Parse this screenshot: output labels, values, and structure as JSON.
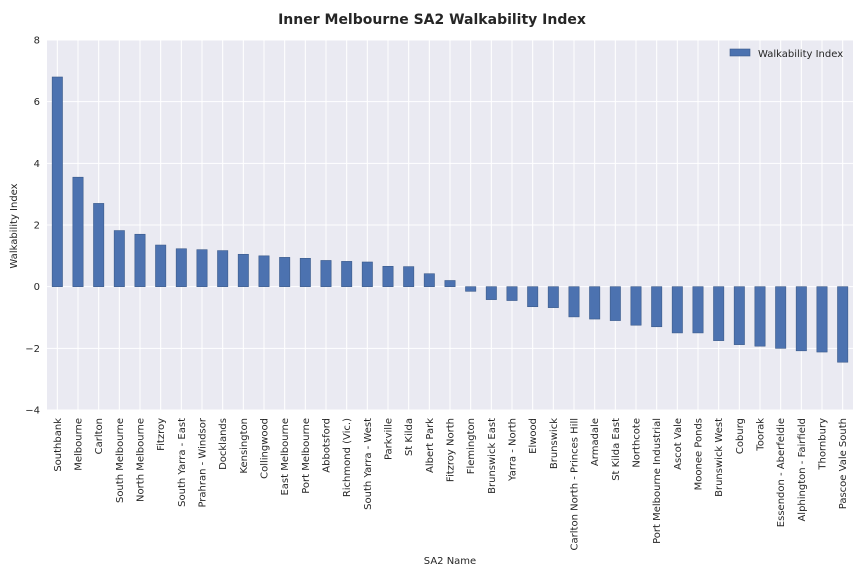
{
  "chart_data": {
    "type": "bar",
    "title": "Inner Melbourne SA2 Walkability Index",
    "xlabel": "SA2 Name",
    "ylabel": "Walkability Index",
    "ylim": [
      -4,
      8
    ],
    "yticks": [
      "8",
      "6",
      "4",
      "2",
      "0",
      "−2",
      "−4"
    ],
    "ytick_values": [
      8,
      6,
      4,
      2,
      0,
      -2,
      -4
    ],
    "grid": true,
    "legend_position": "top-right",
    "colors": {
      "bar": "#4c72b0",
      "plot_background": "#eaeaf2",
      "grid": "#ffffff"
    },
    "categories": [
      "Southbank",
      "Melbourne",
      "Carlton",
      "South Melbourne",
      "North Melbourne",
      "Fitzroy",
      "South Yarra - East",
      "Prahran - Windsor",
      "Docklands",
      "Kensington",
      "Collingwood",
      "East Melbourne",
      "Port Melbourne",
      "Abbotsford",
      "Richmond (Vic.)",
      "South Yarra - West",
      "Parkville",
      "St Kilda",
      "Albert Park",
      "Fitzroy North",
      "Flemington",
      "Brunswick East",
      "Yarra - North",
      "Elwood",
      "Brunswick",
      "Carlton North - Princes Hill",
      "Armadale",
      "St Kilda East",
      "Northcote",
      "Port Melbourne Industrial",
      "Ascot Vale",
      "Moonee Ponds",
      "Brunswick West",
      "Coburg",
      "Toorak",
      "Essendon - Aberfeldie",
      "Alphington - Fairfield",
      "Thornbury",
      "Pascoe Vale South"
    ],
    "series": [
      {
        "name": "Walkability Index",
        "values": [
          6.8,
          3.55,
          2.7,
          1.82,
          1.7,
          1.35,
          1.23,
          1.2,
          1.17,
          1.05,
          1.0,
          0.95,
          0.92,
          0.85,
          0.82,
          0.8,
          0.66,
          0.65,
          0.42,
          0.2,
          -0.15,
          -0.42,
          -0.45,
          -0.65,
          -0.68,
          -0.98,
          -1.05,
          -1.1,
          -1.25,
          -1.3,
          -1.5,
          -1.5,
          -1.75,
          -1.88,
          -1.93,
          -2.0,
          -2.08,
          -2.12,
          -2.45
        ]
      }
    ]
  }
}
